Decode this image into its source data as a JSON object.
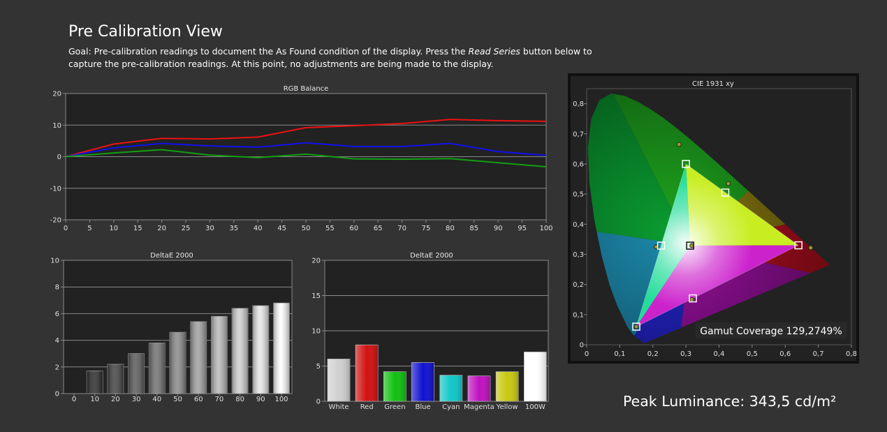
{
  "page": {
    "title": "Pre Calibration View",
    "goal_prefix": "Goal: Pre-calibration readings to document the As Found condition of the display. Press the ",
    "goal_emphasis": "Read Series",
    "goal_suffix": " button below to capture the pre-calibration readings. At this point, no adjustments are being made to the display.",
    "peak_luminance": "Peak Luminance: 343,5 cd/m²"
  },
  "colors": {
    "background": "#333333",
    "plot_background": "#222222",
    "red": "#ee1111",
    "green": "#11a011",
    "blue": "#1111ee"
  },
  "chart_data": [
    {
      "type": "line",
      "title": "RGB Balance",
      "x": [
        0,
        10,
        20,
        30,
        40,
        50,
        60,
        70,
        80,
        90,
        100
      ],
      "x_ticks": [
        "0",
        "5",
        "10",
        "15",
        "20",
        "25",
        "30",
        "35",
        "40",
        "45",
        "50",
        "55",
        "60",
        "65",
        "70",
        "75",
        "80",
        "85",
        "90",
        "95",
        "100"
      ],
      "y_ticks": [
        "20",
        "10",
        "0",
        "-10",
        "-20"
      ],
      "xlim": [
        0,
        100
      ],
      "ylim": [
        -20,
        20
      ],
      "series": [
        {
          "color": "#ee1111",
          "values": [
            0,
            4,
            5.8,
            5.6,
            6.2,
            9.2,
            9.8,
            10.5,
            11.8,
            11.4,
            11.2
          ]
        },
        {
          "color": "#1111ee",
          "values": [
            0,
            2.8,
            4.2,
            3.4,
            3.0,
            4.4,
            3.2,
            3.2,
            4.2,
            1.6,
            0.4
          ]
        },
        {
          "color": "#11a011",
          "values": [
            0,
            1.2,
            2.2,
            0.5,
            -0.3,
            0.8,
            -0.7,
            -0.8,
            -0.6,
            -1.9,
            -3.2
          ]
        }
      ],
      "grid": true
    },
    {
      "type": "bar",
      "title": "DeltaE 2000",
      "categories": [
        "0",
        "10",
        "20",
        "30",
        "40",
        "50",
        "60",
        "70",
        "80",
        "90",
        "100"
      ],
      "values": [
        0,
        1.7,
        2.2,
        3.0,
        3.8,
        4.6,
        5.4,
        5.8,
        6.4,
        6.6,
        6.8
      ],
      "y_ticks": [
        "10",
        "8",
        "6",
        "4",
        "2",
        "0"
      ],
      "ylim": [
        0,
        10
      ]
    },
    {
      "type": "bar",
      "title": "DeltaE 2000",
      "categories": [
        "White",
        "Red",
        "Green",
        "Blue",
        "Cyan",
        "Magenta",
        "Yellow",
        "100W"
      ],
      "values": [
        6.0,
        8.0,
        4.2,
        5.5,
        3.7,
        3.6,
        4.2,
        7.0
      ],
      "bar_colors": [
        "#d0d0d0",
        "#d01010",
        "#10c010",
        "#1010d0",
        "#10c8c8",
        "#c010c0",
        "#c8c810",
        "#ffffff"
      ],
      "y_ticks": [
        "20",
        "15",
        "10",
        "5",
        "0"
      ],
      "ylim": [
        0,
        20
      ]
    },
    {
      "type": "scatter",
      "title": "CIE 1931 xy",
      "xlim": [
        0,
        0.8
      ],
      "ylim": [
        0,
        0.85
      ],
      "x_ticks": [
        "0",
        "0,1",
        "0,2",
        "0,3",
        "0,4",
        "0,5",
        "0,6",
        "0,7",
        "0,8"
      ],
      "y_ticks": [
        "0,8",
        "0,7",
        "0,6",
        "0,5",
        "0,4",
        "0,3",
        "0,2",
        "0,1",
        "0"
      ],
      "target_points": [
        {
          "x": 0.64,
          "y": 0.33
        },
        {
          "x": 0.3,
          "y": 0.6
        },
        {
          "x": 0.15,
          "y": 0.06
        },
        {
          "x": 0.225,
          "y": 0.329
        },
        {
          "x": 0.321,
          "y": 0.154
        },
        {
          "x": 0.419,
          "y": 0.505
        },
        {
          "x": 0.3127,
          "y": 0.329
        }
      ],
      "measured_points": [
        {
          "x": 0.677,
          "y": 0.322
        },
        {
          "x": 0.279,
          "y": 0.665
        },
        {
          "x": 0.15,
          "y": 0.06
        },
        {
          "x": 0.21,
          "y": 0.325
        },
        {
          "x": 0.318,
          "y": 0.15
        },
        {
          "x": 0.428,
          "y": 0.535
        },
        {
          "x": 0.318,
          "y": 0.329
        }
      ],
      "gamut_coverage": "Gamut Coverage 129,2749%"
    }
  ]
}
